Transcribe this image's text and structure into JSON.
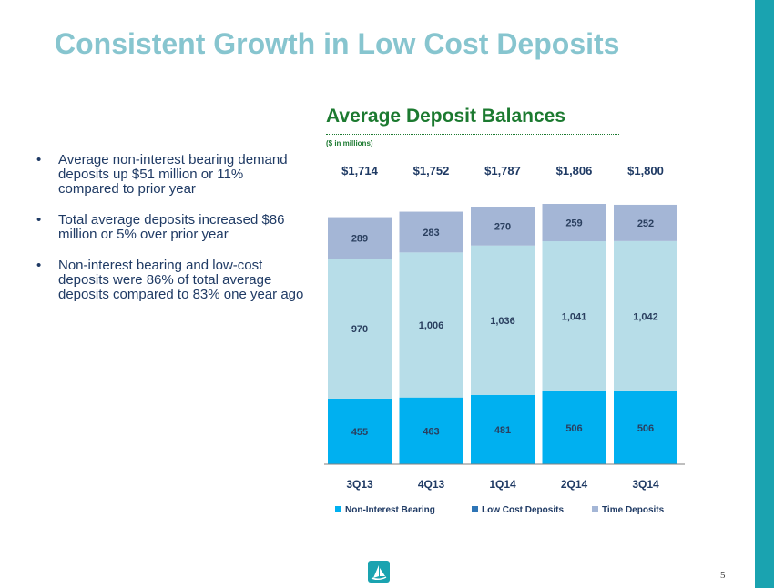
{
  "slide": {
    "title": "Consistent Growth in Low Cost Deposits",
    "page_number": "5"
  },
  "bullets": [
    "Average non-interest bearing demand deposits up $51 million or 11% compared to prior year",
    "Total average deposits increased $86 million or 5% over prior year",
    "Non-interest bearing and low-cost deposits were 86% of total average deposits compared to 83% one year ago"
  ],
  "colors": {
    "title": "#87c5cf",
    "chart_title": "#1c7a30",
    "non_interest": "#00b0f0",
    "low_cost": "#b7dde8",
    "time": "#a4b6d6",
    "accent_bar": "#1aa3b0"
  },
  "chart_data": {
    "type": "bar",
    "stacked": true,
    "title": "Average Deposit Balances",
    "subtitle": "($ in millions)",
    "categories": [
      "3Q13",
      "4Q13",
      "1Q14",
      "2Q14",
      "3Q14"
    ],
    "series": [
      {
        "name": "Non-Interest Bearing",
        "values": [
          455,
          463,
          481,
          506,
          506
        ],
        "labels": [
          "455",
          "463",
          "481",
          "506",
          "506"
        ]
      },
      {
        "name": "Low Cost Deposits",
        "values": [
          970,
          1006,
          1036,
          1041,
          1042
        ],
        "labels": [
          "970",
          "1,006",
          "1,036",
          "1,041",
          "1,042"
        ]
      },
      {
        "name": "Time Deposits",
        "values": [
          289,
          283,
          270,
          259,
          252
        ],
        "labels": [
          "289",
          "283",
          "270",
          "259",
          "252"
        ]
      }
    ],
    "totals": [
      "$1,714",
      "$1,752",
      "$1,787",
      "$1,806",
      "$1,800"
    ],
    "legend": [
      "Non-Interest Bearing",
      "Low Cost Deposits",
      "Time Deposits"
    ],
    "legend_colors": [
      "#00b0f0",
      "#2e75b6",
      "#a4b6d6"
    ],
    "legend_position": "bottom",
    "ylim": [
      0,
      1806
    ]
  }
}
